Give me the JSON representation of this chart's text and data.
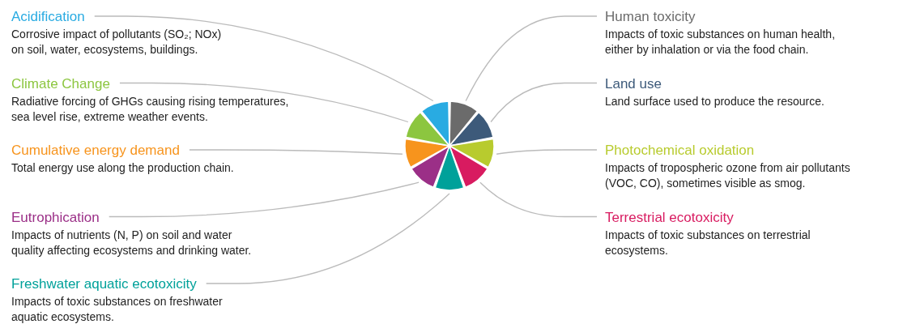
{
  "chart_data": {
    "type": "pie",
    "categories": [
      "Human toxicity",
      "Land use",
      "Photochemical oxidation",
      "Terrestrial ecotoxicity",
      "Freshwater aquatic ecotoxicity",
      "Eutrophication",
      "Cumulative energy demand",
      "Climate Change",
      "Acidification"
    ],
    "values": [
      11.11,
      11.11,
      11.11,
      11.11,
      11.11,
      11.11,
      11.11,
      11.11,
      11.11
    ],
    "colors": [
      "#6b6b6b",
      "#3d5a7a",
      "#b8cb2e",
      "#d81b60",
      "#00a19a",
      "#9b2f87",
      "#f7941d",
      "#8cc63f",
      "#29abe2"
    ],
    "annotations": [
      "Impacts of toxic substances on human health,\neither by inhalation or via the food chain.",
      "Land surface used to produce the resource.",
      "Impacts of tropospheric ozone from air pollutants\n(VOC, CO), sometimes visible as smog.",
      "Impacts of toxic substances on terrestrial\necosystems.",
      "Impacts of toxic substances on freshwater\naquatic ecosystems.",
      "Impacts of nutrients (N, P) on soil and water\nquality affecting ecosystems and drinking water.",
      "Total energy use along the production chain.",
      "Radiative forcing of GHGs causing rising temperatures,\nsea level rise, extreme weather events.",
      "Corrosive impact of pollutants (SO₂; NOx)\non soil, water, ecosystems, buildings."
    ]
  }
}
